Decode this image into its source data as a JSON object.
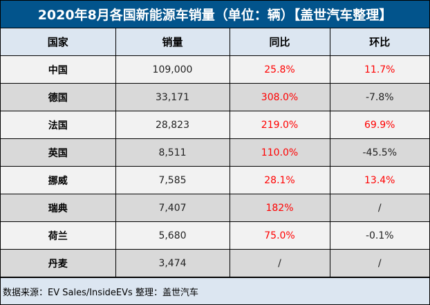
{
  "title": "2020年8月各国新能源车销量（单位：辆）【盖世汽车整理】",
  "headers": [
    "国家",
    "销量",
    "同比",
    "环比"
  ],
  "rows": [
    {
      "country": "中国",
      "sales": "109,000",
      "yoy": "25.8%",
      "mom": "11.7%",
      "yoy_red": true,
      "mom_red": true
    },
    {
      "country": "德国",
      "sales": "33,171",
      "yoy": "308.0%",
      "mom": "-7.8%",
      "yoy_red": true,
      "mom_red": false
    },
    {
      "country": "法国",
      "sales": "28,823",
      "yoy": "219.0%",
      "mom": "69.9%",
      "yoy_red": true,
      "mom_red": true
    },
    {
      "country": "英国",
      "sales": "8,511",
      "yoy": "110.0%",
      "mom": "-45.5%",
      "yoy_red": true,
      "mom_red": false
    },
    {
      "country": "挪威",
      "sales": "7,585",
      "yoy": "28.1%",
      "mom": "13.4%",
      "yoy_red": true,
      "mom_red": true
    },
    {
      "country": "瑞典",
      "sales": "7,407",
      "yoy": "182%",
      "mom": "/",
      "yoy_red": true,
      "mom_red": false
    },
    {
      "country": "荷兰",
      "sales": "5,680",
      "yoy": "75.0%",
      "mom": "-0.1%",
      "yoy_red": true,
      "mom_red": false
    },
    {
      "country": "丹麦",
      "sales": "3,474",
      "yoy": "/",
      "mom": "/",
      "yoy_red": false,
      "mom_red": false
    }
  ],
  "footer": "数据来源：EV Sales/InsideEVs 整理：盖世汽车",
  "colors": {
    "title_bg": "#02548c",
    "header_bg": "#dce6f1",
    "positive": "#ff0000"
  }
}
